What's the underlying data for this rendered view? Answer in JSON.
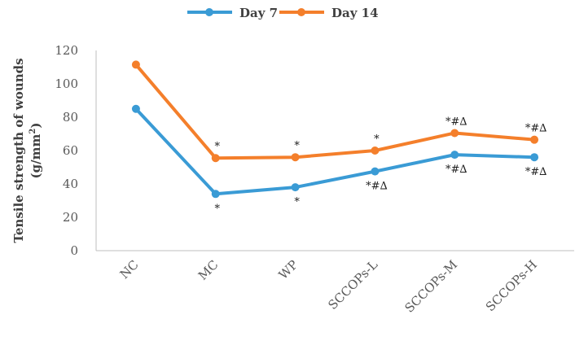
{
  "chart_data": {
    "type": "line",
    "categories": [
      "NC",
      "MC",
      "WP",
      "SCCOPs-L",
      "SCCOPs-M",
      "SCCOPs-H"
    ],
    "series": [
      {
        "name": "Day 7",
        "color": "#3a9bd5",
        "values": [
          85,
          34,
          38,
          47.5,
          57.5,
          56
        ],
        "annotations": [
          "",
          "*",
          "*",
          "*#∆",
          "*#∆",
          "*#∆"
        ]
      },
      {
        "name": "Day 14",
        "color": "#f47f2b",
        "values": [
          111.5,
          55.5,
          56,
          60,
          70.5,
          66.5
        ],
        "annotations": [
          "",
          "*",
          "*",
          "*",
          "*#∆",
          "*#∆"
        ]
      }
    ],
    "ylabel_line1": "Tensile strength of wounds",
    "ylabel_line2": "(g/mm",
    "ylabel_sup": "2",
    "ylabel_close": ")",
    "ylim": [
      0,
      120
    ],
    "yticks": [
      "0",
      "20",
      "40",
      "60",
      "80",
      "100",
      "120"
    ],
    "grid": false,
    "legend_position": "top"
  }
}
